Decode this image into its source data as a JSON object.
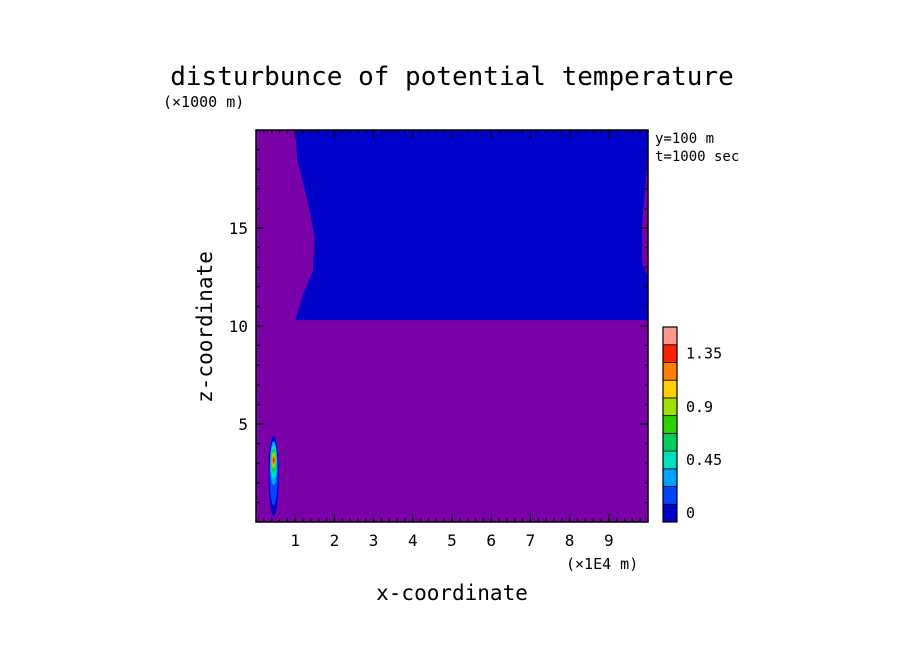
{
  "chart_data": {
    "type": "heatmap",
    "title": "disturbunce of potential temperature",
    "xlabel": "x-coordinate",
    "ylabel": "z-coordinate",
    "x_unit": "(×1E4 m)",
    "y_unit": "(×1000 m)",
    "info": [
      "y=100 m",
      "t=1000 sec"
    ],
    "xlim": [
      0,
      10
    ],
    "ylim": [
      0,
      20
    ],
    "x_ticks": [
      1,
      2,
      3,
      4,
      5,
      6,
      7,
      8,
      9
    ],
    "y_ticks": [
      5,
      10,
      15
    ],
    "colorbar": {
      "levels": [
        0,
        0.15,
        0.3,
        0.45,
        0.6,
        0.75,
        0.9,
        1.05,
        1.2,
        1.35,
        1.5
      ],
      "colors": [
        "#0000c8",
        "#0044ff",
        "#00a0ff",
        "#00e0c0",
        "#00d060",
        "#30d000",
        "#a0e000",
        "#ffd000",
        "#ff8000",
        "#ff2000",
        "#ff9a8a"
      ],
      "tick_labels": [
        "0",
        "0.45",
        "0.9",
        "1.35"
      ],
      "tick_values": [
        0,
        0.45,
        0.9,
        1.35
      ]
    },
    "regions": [
      {
        "name": "upper-layer",
        "color": "#0000c8",
        "z_range": [
          10.3,
          20
        ],
        "x_range": [
          1.0,
          9.9
        ]
      },
      {
        "name": "background",
        "color": "#7a00a8"
      }
    ],
    "bubble": {
      "x_center": 0.45,
      "z_center": 3.0,
      "z_range": [
        0.3,
        4.4
      ]
    }
  }
}
